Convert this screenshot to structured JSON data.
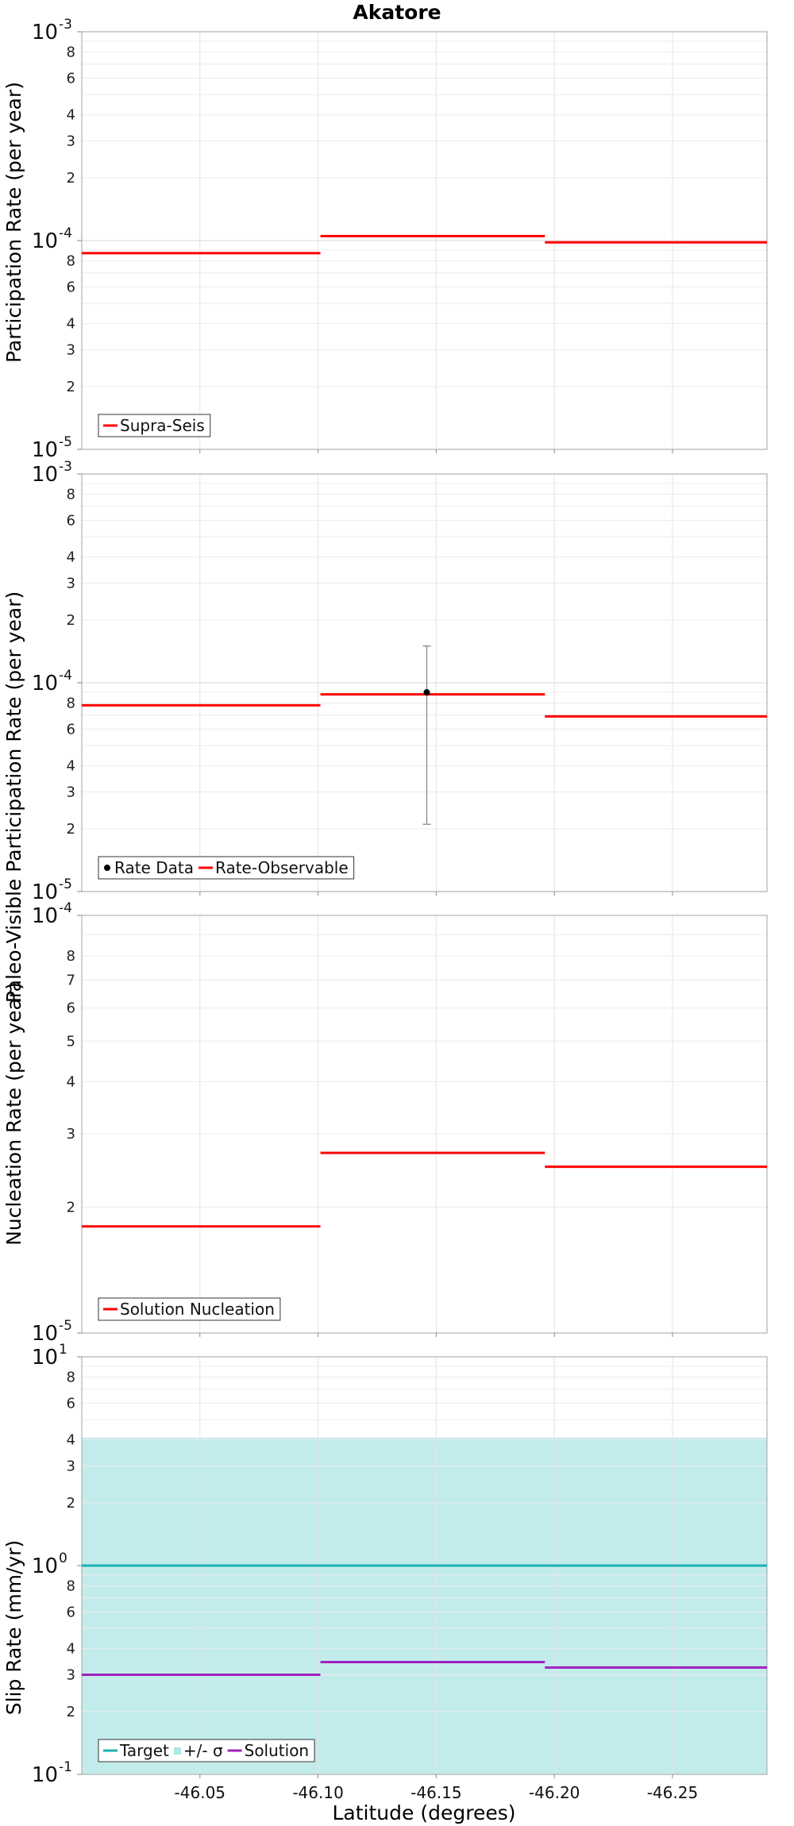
{
  "title": "Akatore",
  "xlabel": "Latitude (degrees)",
  "x_ticks": [
    "-46.05",
    "-46.10",
    "-46.15",
    "-46.20",
    "-46.25"
  ],
  "chart_data": [
    {
      "type": "line",
      "ylabel": "Participation Rate (per year)",
      "yscale": "log",
      "xlim": [
        -46.0,
        -46.29
      ],
      "ylim": [
        1e-05,
        0.001
      ],
      "y_ticks": [
        {
          "base": "10",
          "exp": "-5"
        },
        "2",
        "3",
        "4",
        "6",
        "8",
        {
          "base": "10",
          "exp": "-4"
        },
        "2",
        "3",
        "4",
        "6",
        "8",
        {
          "base": "10",
          "exp": "-3"
        }
      ],
      "series": [
        {
          "name": "Supra-Seis",
          "color": "#ff0000",
          "style": "step",
          "segments": [
            {
              "x": [
                -46.0,
                -46.101
              ],
              "y": 8.7e-05
            },
            {
              "x": [
                -46.101,
                -46.196
              ],
              "y": 0.000105
            },
            {
              "x": [
                -46.196,
                -46.29
              ],
              "y": 9.8e-05
            }
          ]
        }
      ],
      "legend": [
        "Supra-Seis"
      ],
      "legend_position": "bottom-left"
    },
    {
      "type": "line",
      "ylabel": "Paleo-Visible Participation Rate (per year)",
      "yscale": "log",
      "xlim": [
        -46.0,
        -46.29
      ],
      "ylim": [
        1e-05,
        0.001
      ],
      "y_ticks": [
        {
          "base": "10",
          "exp": "-5"
        },
        "2",
        "3",
        "4",
        "6",
        "8",
        {
          "base": "10",
          "exp": "-4"
        },
        "2",
        "3",
        "4",
        "6",
        "8",
        {
          "base": "10",
          "exp": "-3"
        }
      ],
      "points": [
        {
          "name": "Rate Data",
          "x": -46.146,
          "y": 9e-05,
          "err_low": 2.1e-05,
          "err_high": 0.00015
        }
      ],
      "series": [
        {
          "name": "Rate-Observable",
          "color": "#ff0000",
          "style": "step",
          "segments": [
            {
              "x": [
                -46.0,
                -46.101
              ],
              "y": 7.8e-05
            },
            {
              "x": [
                -46.101,
                -46.196
              ],
              "y": 8.8e-05
            },
            {
              "x": [
                -46.196,
                -46.29
              ],
              "y": 6.9e-05
            }
          ]
        }
      ],
      "legend": [
        "Rate Data",
        "Rate-Observable"
      ],
      "legend_position": "bottom-left"
    },
    {
      "type": "line",
      "ylabel": "Nucleation Rate (per year)",
      "yscale": "log",
      "xlim": [
        -46.0,
        -46.29
      ],
      "ylim": [
        1e-05,
        0.0001
      ],
      "y_ticks": [
        {
          "base": "10",
          "exp": "-5"
        },
        "2",
        "3",
        "4",
        "5",
        "6",
        "7",
        "8",
        {
          "base": "10",
          "exp": "-4"
        }
      ],
      "series": [
        {
          "name": "Solution Nucleation",
          "color": "#ff0000",
          "style": "step",
          "segments": [
            {
              "x": [
                -46.0,
                -46.101
              ],
              "y": 1.8e-05
            },
            {
              "x": [
                -46.101,
                -46.196
              ],
              "y": 2.7e-05
            },
            {
              "x": [
                -46.196,
                -46.29
              ],
              "y": 2.5e-05
            }
          ]
        }
      ],
      "legend": [
        "Solution Nucleation"
      ],
      "legend_position": "bottom-left"
    },
    {
      "type": "area",
      "ylabel": "Slip Rate (mm/yr)",
      "yscale": "log",
      "xlim": [
        -46.0,
        -46.29
      ],
      "ylim": [
        0.1,
        10
      ],
      "y_ticks": [
        {
          "base": "10",
          "exp": "-1"
        },
        "2",
        "3",
        "4",
        "6",
        "8",
        {
          "base": "10",
          "exp": "0"
        },
        "2",
        "3",
        "4",
        "6",
        "8",
        {
          "base": "10",
          "exp": "1"
        }
      ],
      "band": {
        "name": "+/- σ",
        "color": "#5fcdca",
        "low": 0.1,
        "high": 4.1
      },
      "series": [
        {
          "name": "Target",
          "color": "#19b0b3",
          "style": "step",
          "segments": [
            {
              "x": [
                -46.0,
                -46.29
              ],
              "y": 1.0
            }
          ]
        },
        {
          "name": "Solution",
          "color": "#a020c0",
          "style": "step",
          "segments": [
            {
              "x": [
                -46.0,
                -46.101
              ],
              "y": 0.3
            },
            {
              "x": [
                -46.101,
                -46.196
              ],
              "y": 0.345
            },
            {
              "x": [
                -46.196,
                -46.29
              ],
              "y": 0.325
            }
          ]
        }
      ],
      "legend": [
        "Target",
        "+/- σ",
        "Solution"
      ],
      "legend_position": "bottom-left"
    }
  ]
}
